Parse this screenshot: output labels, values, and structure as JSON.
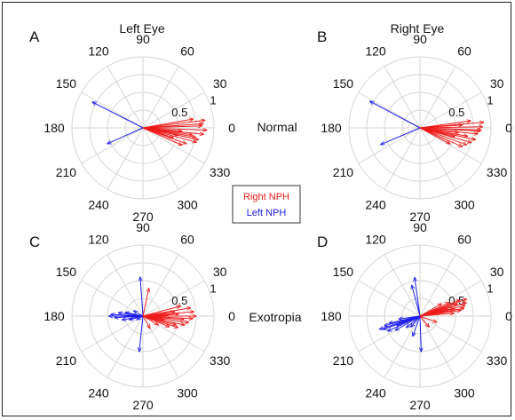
{
  "panel_labels": [
    "A",
    "B",
    "C",
    "D"
  ],
  "column_titles": [
    "Left Eye",
    "Right Eye"
  ],
  "row_labels": [
    "Normal",
    "Exotropia"
  ],
  "legend": {
    "right_label": "Right NPH",
    "left_label": "Left NPH",
    "right_color": "#ee1c1c",
    "left_color": "#1c1cee"
  },
  "axis": {
    "angle_ticks": [
      "0",
      "30",
      "60",
      "90",
      "120",
      "150",
      "180",
      "210",
      "240",
      "270",
      "300",
      "330"
    ],
    "radius_ticks": [
      "0.5",
      "1"
    ],
    "rmax": 1
  },
  "chart_data": [
    {
      "type": "polar-vector",
      "panel": "A",
      "series": [
        {
          "name": "Right NPH",
          "color": "#ee1c1c",
          "vectors": [
            [
              0.88,
              7
            ],
            [
              0.85,
              4
            ],
            [
              0.9,
              -2
            ],
            [
              0.86,
              -6
            ],
            [
              0.8,
              -12
            ],
            [
              0.78,
              -15
            ],
            [
              0.75,
              -10
            ],
            [
              0.72,
              10
            ],
            [
              0.7,
              -8
            ],
            [
              0.65,
              -20
            ],
            [
              0.6,
              -24
            ],
            [
              0.55,
              -5
            ],
            [
              0.5,
              -12
            ],
            [
              0.45,
              -18
            ],
            [
              0.83,
              2
            ]
          ]
        },
        {
          "name": "Left NPH",
          "color": "#1c1cee",
          "vectors": [
            [
              0.8,
              153
            ],
            [
              0.55,
              204
            ]
          ]
        }
      ]
    },
    {
      "type": "polar-vector",
      "panel": "B",
      "series": [
        {
          "name": "Right NPH",
          "color": "#ee1c1c",
          "vectors": [
            [
              0.9,
              5
            ],
            [
              0.88,
              1
            ],
            [
              0.85,
              -3
            ],
            [
              0.82,
              -6
            ],
            [
              0.8,
              -12
            ],
            [
              0.75,
              -16
            ],
            [
              0.7,
              -20
            ],
            [
              0.68,
              -10
            ],
            [
              0.65,
              -24
            ],
            [
              0.6,
              4
            ],
            [
              0.55,
              -7
            ],
            [
              0.5,
              -14
            ],
            [
              0.48,
              -28
            ],
            [
              0.86,
              -2
            ],
            [
              0.72,
              8
            ]
          ]
        },
        {
          "name": "Left NPH",
          "color": "#1c1cee",
          "vectors": [
            [
              0.8,
              152
            ],
            [
              0.6,
              203
            ]
          ]
        }
      ]
    },
    {
      "type": "polar-vector",
      "panel": "C",
      "series": [
        {
          "name": "Right NPH",
          "color": "#ee1c1c",
          "vectors": [
            [
              0.75,
              0
            ],
            [
              0.72,
              5
            ],
            [
              0.7,
              -3
            ],
            [
              0.68,
              10
            ],
            [
              0.65,
              -8
            ],
            [
              0.6,
              -12
            ],
            [
              0.58,
              -5
            ],
            [
              0.55,
              15
            ],
            [
              0.52,
              -18
            ],
            [
              0.5,
              3
            ],
            [
              0.48,
              -15
            ],
            [
              0.45,
              8
            ],
            [
              0.4,
              -22
            ],
            [
              0.35,
              2
            ],
            [
              0.3,
              -10
            ],
            [
              0.25,
              -30
            ],
            [
              0.4,
              78
            ],
            [
              0.2,
              -60
            ]
          ]
        },
        {
          "name": "Left NPH",
          "color": "#1c1cee",
          "vectors": [
            [
              0.48,
              180
            ],
            [
              0.45,
              177
            ],
            [
              0.4,
              183
            ],
            [
              0.35,
              172
            ],
            [
              0.3,
              190
            ],
            [
              0.25,
              168
            ],
            [
              0.2,
              195
            ],
            [
              0.55,
              94
            ],
            [
              0.5,
              264
            ],
            [
              0.15,
              150
            ],
            [
              0.1,
              210
            ]
          ]
        }
      ]
    },
    {
      "type": "polar-vector",
      "panel": "D",
      "series": [
        {
          "name": "Right NPH",
          "color": "#ee1c1c",
          "vectors": [
            [
              0.7,
              20
            ],
            [
              0.68,
              16
            ],
            [
              0.65,
              13
            ],
            [
              0.63,
              10
            ],
            [
              0.6,
              22
            ],
            [
              0.58,
              8
            ],
            [
              0.55,
              18
            ],
            [
              0.5,
              12
            ],
            [
              0.48,
              5
            ],
            [
              0.45,
              25
            ],
            [
              0.4,
              15
            ],
            [
              0.35,
              30
            ],
            [
              0.3,
              10
            ],
            [
              0.25,
              -20
            ],
            [
              0.2,
              -50
            ]
          ]
        },
        {
          "name": "Left NPH",
          "color": "#1c1cee",
          "vectors": [
            [
              0.6,
              198
            ],
            [
              0.55,
              200
            ],
            [
              0.52,
              195
            ],
            [
              0.5,
              205
            ],
            [
              0.45,
              193
            ],
            [
              0.4,
              210
            ],
            [
              0.35,
              202
            ],
            [
              0.3,
              188
            ],
            [
              0.25,
              220
            ],
            [
              0.55,
              98
            ],
            [
              0.45,
              105
            ],
            [
              0.5,
              272
            ],
            [
              0.3,
              250
            ],
            [
              0.2,
              230
            ]
          ]
        }
      ]
    }
  ]
}
